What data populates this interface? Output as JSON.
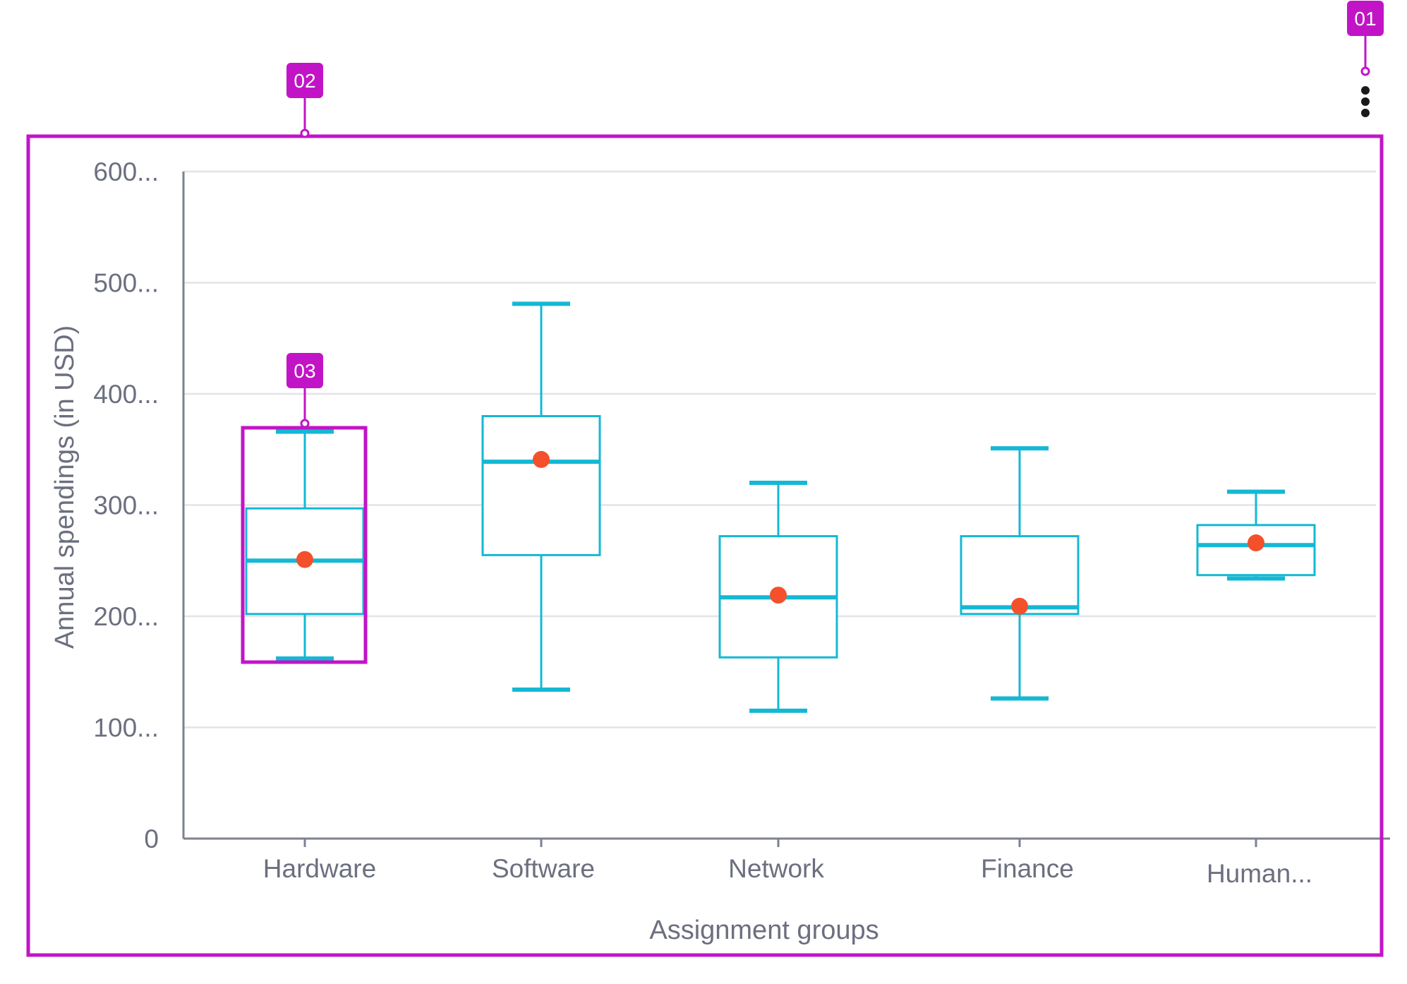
{
  "menu": {
    "icon": "more-vertical-icon"
  },
  "callouts": [
    "01",
    "02",
    "03"
  ],
  "colors": {
    "box": "#14b8d4",
    "mean": "#f4502b",
    "annotation": "#c214c7",
    "axis": "#7d8190",
    "grid": "#e3e4e8",
    "text": "#6b6f7f"
  },
  "chart_data": {
    "type": "boxplot",
    "xlabel": "Assignment groups",
    "ylabel": "Annual spendings (in USD)",
    "ylim": [
      0,
      600
    ],
    "y_tick_labels": [
      "0",
      "100...",
      "200...",
      "300...",
      "400...",
      "500...",
      "600..."
    ],
    "y_tick_values": [
      0,
      100,
      200,
      300,
      400,
      500,
      600
    ],
    "categories": [
      "Hardware",
      "Software",
      "Network",
      "Finance",
      "Human..."
    ],
    "boxes": [
      {
        "category": "Hardware",
        "min": 162,
        "q1": 202,
        "median": 250,
        "q3": 297,
        "max": 366,
        "mean": 251
      },
      {
        "category": "Software",
        "min": 134,
        "q1": 255,
        "median": 339,
        "q3": 380,
        "max": 481,
        "mean": 341
      },
      {
        "category": "Network",
        "min": 115,
        "q1": 163,
        "median": 217,
        "q3": 272,
        "max": 320,
        "mean": 219
      },
      {
        "category": "Finance",
        "min": 126,
        "q1": 202,
        "median": 208,
        "q3": 272,
        "max": 351,
        "mean": 209
      },
      {
        "category": "Human...",
        "min": 234,
        "q1": 237,
        "median": 264,
        "q3": 282,
        "max": 312,
        "mean": 266
      }
    ],
    "grid": true,
    "legend": "none"
  }
}
